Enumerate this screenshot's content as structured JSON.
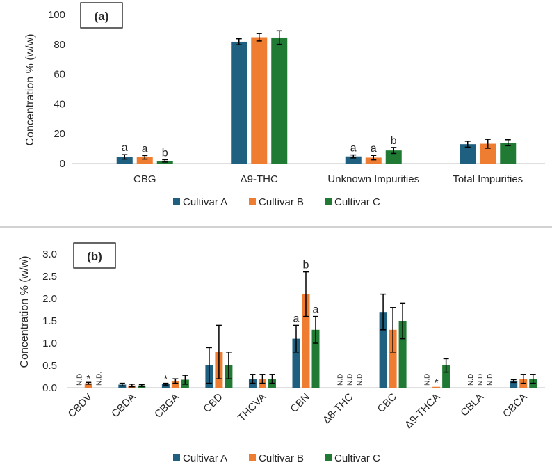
{
  "colors": {
    "Cultivar A": "#1f5f7f",
    "Cultivar B": "#ee7d31",
    "Cultivar C": "#217a33"
  },
  "chart_data": [
    {
      "type": "bar",
      "panel_label": "(a)",
      "ylabel": "Concentration % (w/w)",
      "xlabel": "",
      "ylim": [
        0,
        100
      ],
      "yticks": [
        "0",
        "20",
        "40",
        "60",
        "80",
        "100"
      ],
      "grid": false,
      "legend": "bottom",
      "categories": [
        "CBG",
        "Δ9-THC",
        "Unknown Impurities",
        "Total Impurities"
      ],
      "series": [
        {
          "name": "Cultivar A",
          "values": [
            4.5,
            81.8,
            4.8,
            13.0
          ],
          "errors": [
            1.5,
            2.0,
            1.0,
            2.0
          ]
        },
        {
          "name": "Cultivar B",
          "values": [
            4.2,
            84.8,
            4.0,
            13.3
          ],
          "errors": [
            1.2,
            2.5,
            1.5,
            3.0
          ]
        },
        {
          "name": "Cultivar C",
          "values": [
            1.8,
            84.6,
            8.8,
            14.0
          ],
          "errors": [
            0.8,
            4.5,
            2.0,
            2.0
          ]
        }
      ],
      "annotations": [
        [
          "a",
          "a",
          "b"
        ],
        [
          "",
          "",
          ""
        ],
        [
          "a",
          "a",
          "b"
        ],
        [
          "",
          "",
          ""
        ]
      ]
    },
    {
      "type": "bar",
      "panel_label": "(b)",
      "ylabel": "Concentration % (w/w)",
      "xlabel": "",
      "ylim": [
        0,
        3.0
      ],
      "yticks": [
        "0.0",
        "0.5",
        "1.0",
        "1.5",
        "2.0",
        "2.5",
        "3.0"
      ],
      "grid": false,
      "legend": "bottom",
      "categories": [
        "CBDV",
        "CBDA",
        "CBGA",
        "CBD",
        "THCVA",
        "CBN",
        "Δ8-THC",
        "CBC",
        "Δ9-THCA",
        "CBLA",
        "CBCA"
      ],
      "series": [
        {
          "name": "Cultivar A",
          "values": [
            0,
            0.07,
            0.08,
            0.5,
            0.2,
            1.1,
            0,
            1.7,
            0,
            0,
            0.15
          ],
          "errors": [
            0,
            0.03,
            0.02,
            0.4,
            0.1,
            0.3,
            0,
            0.4,
            0,
            0,
            0.03
          ]
        },
        {
          "name": "Cultivar B",
          "values": [
            0.1,
            0.05,
            0.15,
            0.8,
            0.2,
            2.1,
            0,
            1.3,
            0.02,
            0,
            0.2
          ],
          "errors": [
            0.02,
            0.03,
            0.05,
            0.6,
            0.1,
            0.5,
            0,
            0.5,
            0,
            0,
            0.1
          ]
        },
        {
          "name": "Cultivar C",
          "values": [
            0,
            0.05,
            0.18,
            0.5,
            0.2,
            1.3,
            0,
            1.5,
            0.5,
            0,
            0.2
          ],
          "errors": [
            0,
            0.02,
            0.1,
            0.3,
            0.1,
            0.3,
            0,
            0.4,
            0.15,
            0,
            0.1
          ]
        }
      ],
      "annotations": [
        [
          "N.D",
          "*",
          "N.D."
        ],
        [
          "",
          "",
          ""
        ],
        [
          "*",
          "",
          ""
        ],
        [
          "",
          "",
          ""
        ],
        [
          "",
          "",
          ""
        ],
        [
          "a",
          "b",
          "a"
        ],
        [
          "N.D",
          "N.D",
          "N.D"
        ],
        [
          "",
          "",
          ""
        ],
        [
          "N.D",
          "*",
          ""
        ],
        [
          "N.D",
          "N.D",
          "N.D"
        ],
        [
          "",
          "",
          ""
        ]
      ]
    }
  ]
}
